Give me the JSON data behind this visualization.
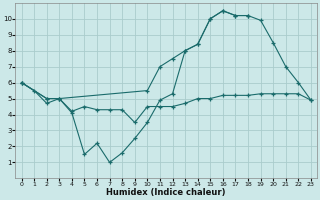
{
  "xlabel": "Humidex (Indice chaleur)",
  "background_color": "#cce8e8",
  "grid_color": "#aacccc",
  "line_color": "#1a6b6b",
  "xlim": [
    -0.5,
    23.5
  ],
  "ylim": [
    0,
    11
  ],
  "xticks": [
    0,
    1,
    2,
    3,
    4,
    5,
    6,
    7,
    8,
    9,
    10,
    11,
    12,
    13,
    14,
    15,
    16,
    17,
    18,
    19,
    20,
    21,
    22,
    23
  ],
  "yticks": [
    1,
    2,
    3,
    4,
    5,
    6,
    7,
    8,
    9,
    10
  ],
  "series": [
    {
      "x": [
        0,
        1,
        2,
        3,
        4,
        5,
        6,
        7,
        8,
        9,
        10,
        11,
        12,
        13,
        14,
        15,
        16,
        17,
        18,
        19,
        20,
        21,
        22,
        23
      ],
      "y": [
        6,
        5.5,
        4.7,
        5.0,
        4.1,
        1.5,
        2.2,
        1.0,
        1.6,
        2.5,
        3.5,
        4.9,
        5.3,
        8.0,
        8.4,
        10.0,
        10.5,
        10.2,
        10.2,
        null,
        null,
        null,
        null,
        null
      ]
    },
    {
      "x": [
        0,
        2,
        3,
        4,
        5,
        6,
        7,
        8,
        9,
        10,
        11,
        12,
        13,
        14,
        15,
        16,
        17,
        18,
        19,
        20,
        21,
        22,
        23
      ],
      "y": [
        6,
        5.0,
        5.0,
        4.2,
        4.5,
        4.3,
        4.3,
        4.3,
        3.5,
        4.5,
        4.5,
        4.5,
        4.7,
        5.0,
        5.0,
        5.2,
        5.2,
        5.2,
        5.3,
        5.3,
        5.3,
        5.3,
        4.9
      ]
    },
    {
      "x": [
        0,
        2,
        3,
        10,
        11,
        12,
        13,
        14,
        15,
        16,
        17,
        18,
        19,
        20,
        21,
        22,
        23
      ],
      "y": [
        6,
        5.0,
        5.0,
        5.5,
        7.0,
        7.5,
        8.0,
        8.4,
        10.0,
        10.5,
        10.2,
        10.2,
        9.9,
        8.5,
        7.0,
        6.0,
        4.9
      ]
    }
  ]
}
